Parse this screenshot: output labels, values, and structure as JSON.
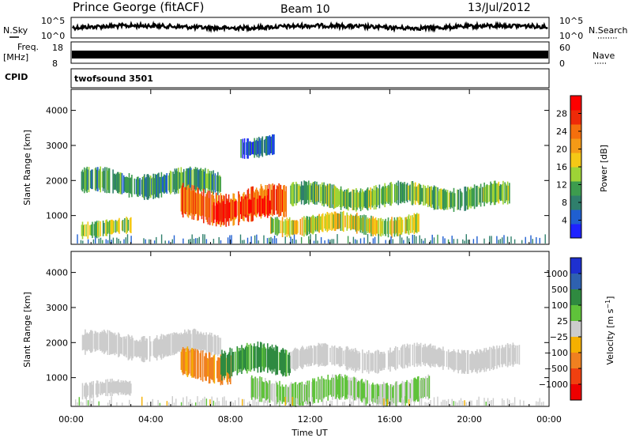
{
  "header": {
    "station": "Prince George (fitACF)",
    "beam": "Beam 10",
    "date": "13/Jul/2012"
  },
  "top_panels": {
    "nsky_label": "N.Sky",
    "nsky_ticks": [
      "10^5",
      "10^0"
    ],
    "nsearch_label": "N.Search",
    "nsearch_ticks": [
      "10^5",
      "10^0"
    ],
    "freq_label": "Freq.",
    "freq_unit": "[MHz]",
    "freq_ticks": [
      "18",
      "8"
    ],
    "nave_label": "Nave",
    "nave_ticks": [
      "60",
      "0"
    ],
    "cpid_label": "CPID",
    "cpid_value": "twofsound 3501"
  },
  "chart_data": [
    {
      "type": "heatmap",
      "panel": "power",
      "xlabel": "Time UT",
      "ylabel": "Slant Range [km]",
      "x_ticks": [
        "00:00",
        "04:00",
        "08:00",
        "12:00",
        "16:00",
        "20:00",
        "00:00"
      ],
      "xlim_hours": [
        0,
        24
      ],
      "y_ticks": [
        "1000",
        "2000",
        "3000",
        "4000"
      ],
      "ylim_km": [
        180,
        4600
      ],
      "colorbar": {
        "label": "Power [dB]",
        "ticks": [
          "4",
          "8",
          "12",
          "16",
          "20",
          "24",
          "28"
        ],
        "range": [
          0,
          32
        ],
        "colors": [
          "#1e22ff",
          "#1f5fd0",
          "#2f7f6c",
          "#3d9c4e",
          "#9ed436",
          "#f5c816",
          "#f59a16",
          "#f56f0d",
          "#ee2a08",
          "#ff0000"
        ]
      },
      "features": [
        {
          "t0": 0.5,
          "t1": 7.5,
          "r0": 1550,
          "r1": 2300,
          "level": 10
        },
        {
          "t0": 5.5,
          "t1": 10.8,
          "r0": 800,
          "r1": 1800,
          "level": 24
        },
        {
          "t0": 7.0,
          "t1": 10.0,
          "r0": 850,
          "r1": 1500,
          "level": 28
        },
        {
          "t0": 10.0,
          "t1": 17.5,
          "r0": 450,
          "r1": 1050,
          "level": 16
        },
        {
          "t0": 0.5,
          "t1": 3.0,
          "r0": 400,
          "r1": 900,
          "level": 14
        },
        {
          "t0": 11.0,
          "t1": 22.0,
          "r0": 1200,
          "r1": 1900,
          "level": 12
        },
        {
          "t0": 8.5,
          "t1": 10.2,
          "r0": 2700,
          "r1": 3300,
          "level": 6
        }
      ]
    },
    {
      "type": "heatmap",
      "panel": "velocity",
      "xlabel": "Time UT",
      "ylabel": "Slant Range [km]",
      "x_ticks": [
        "00:00",
        "04:00",
        "08:00",
        "12:00",
        "16:00",
        "20:00",
        "00:00"
      ],
      "xlim_hours": [
        0,
        24
      ],
      "y_ticks": [
        "1000",
        "2000",
        "3000",
        "4000"
      ],
      "ylim_km": [
        180,
        4600
      ],
      "colorbar": {
        "label": "Velocity [m s^-1]",
        "ticks": [
          "1000",
          "500",
          "100",
          "25",
          "-25",
          "-100",
          "-500",
          "-1000"
        ],
        "colors": [
          "#1e30d0",
          "#2e61b0",
          "#2f8a40",
          "#5fc23a",
          "#cccccc",
          "#f5b000",
          "#f08020",
          "#f04010",
          "#ee0000"
        ]
      },
      "features": [
        {
          "t0": 0.5,
          "t1": 7.5,
          "r0": 1550,
          "r1": 2300,
          "velocity": 0
        },
        {
          "t0": 5.5,
          "t1": 8.0,
          "r0": 900,
          "r1": 1800,
          "velocity": -150
        },
        {
          "t0": 7.5,
          "t1": 11.0,
          "r0": 1000,
          "r1": 1900,
          "velocity": 150
        },
        {
          "t0": 9.0,
          "t1": 18.0,
          "r0": 250,
          "r1": 1000,
          "velocity": 30
        },
        {
          "t0": 11.0,
          "t1": 22.5,
          "r0": 1200,
          "r1": 1900,
          "velocity": 0
        },
        {
          "t0": 0.5,
          "t1": 3.0,
          "r0": 400,
          "r1": 900,
          "velocity": 0
        }
      ]
    }
  ]
}
